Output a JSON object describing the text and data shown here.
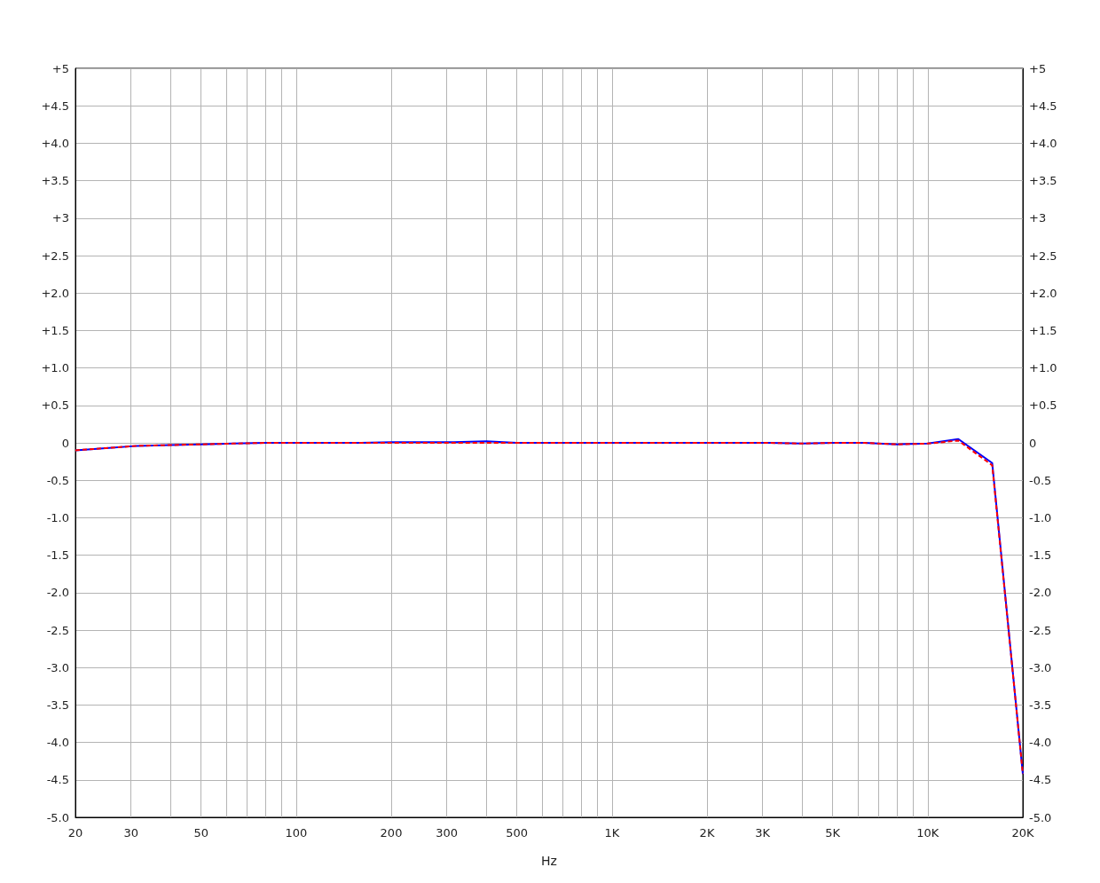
{
  "chart_data": {
    "type": "line",
    "xlabel": "Hz",
    "x": [
      20,
      25,
      31.5,
      40,
      50,
      63,
      80,
      100,
      125,
      160,
      200,
      250,
      315,
      400,
      500,
      630,
      800,
      1000,
      1250,
      1600,
      2000,
      2500,
      3150,
      4000,
      5000,
      6300,
      8000,
      10000,
      12500,
      16000,
      20000
    ],
    "series": [
      {
        "color": "#0000ff",
        "line_style": "solid",
        "values": [
          -0.1,
          -0.07,
          -0.04,
          -0.03,
          -0.02,
          -0.01,
          0,
          0,
          0,
          0,
          0.01,
          0.01,
          0.01,
          0.02,
          0,
          0,
          0,
          0,
          0,
          0,
          0,
          0,
          0,
          -0.01,
          0,
          0,
          -0.02,
          -0.01,
          0.05,
          -0.27,
          -4.42
        ]
      },
      {
        "color": "#ff0000",
        "line_style": "dashed",
        "values": [
          -0.1,
          -0.07,
          -0.04,
          -0.03,
          -0.02,
          -0.01,
          0,
          0,
          0,
          0,
          0,
          0,
          0,
          0,
          0,
          0,
          0,
          0,
          0,
          0,
          0,
          0,
          0,
          -0.01,
          0,
          0,
          -0.02,
          -0.01,
          0.03,
          -0.3,
          -4.42
        ]
      }
    ],
    "log": "x",
    "xlim": [
      20,
      20000
    ],
    "xticks": [
      20,
      30,
      {
        "value": 40,
        "label": null
      },
      50,
      {
        "value": 60,
        "label": null
      },
      {
        "value": 70,
        "label": null
      },
      {
        "value": 80,
        "label": null
      },
      {
        "value": 90,
        "label": null
      },
      100,
      200,
      300,
      {
        "value": 400,
        "label": null
      },
      500,
      {
        "value": 600,
        "label": null
      },
      {
        "value": 700,
        "label": null
      },
      {
        "value": 800,
        "label": null
      },
      {
        "value": 900,
        "label": null
      },
      {
        "value": 1000,
        "label": "1K"
      },
      {
        "value": 2000,
        "label": "2K"
      },
      {
        "value": 3000,
        "label": "3K"
      },
      {
        "value": 4000,
        "label": null
      },
      {
        "value": 5000,
        "label": "5K"
      },
      {
        "value": 6000,
        "label": null
      },
      {
        "value": 7000,
        "label": null
      },
      {
        "value": 8000,
        "label": null
      },
      {
        "value": 9000,
        "label": null
      },
      {
        "value": 10000,
        "label": "10K"
      },
      {
        "value": 20000,
        "label": "20K"
      }
    ],
    "ylim": [
      -5,
      5
    ],
    "yticks": [
      {
        "value": 5,
        "label": "+5"
      },
      {
        "value": 4.5,
        "label": "+4.5"
      },
      {
        "value": 4,
        "label": "+4.0"
      },
      {
        "value": 3.5,
        "label": "+3.5"
      },
      {
        "value": 3,
        "label": "+3"
      },
      {
        "value": 2.5,
        "label": "+2.5"
      },
      {
        "value": 2,
        "label": "+2.0"
      },
      {
        "value": 1.5,
        "label": "+1.5"
      },
      {
        "value": 1,
        "label": "+1.0"
      },
      {
        "value": 0.5,
        "label": "+0.5"
      },
      0,
      -0.5,
      {
        "value": -1,
        "label": "-1.0"
      },
      -1.5,
      {
        "value": -2,
        "label": "-2.0"
      },
      -2.5,
      {
        "value": -3,
        "label": "-3.0"
      },
      -3.5,
      {
        "value": -4,
        "label": "-4.0"
      },
      -4.5,
      {
        "value": -5,
        "label": "-5.0"
      }
    ],
    "y2lim": [
      -5,
      5
    ],
    "y2ticks": [
      {
        "value": 5,
        "label": "+5"
      },
      {
        "value": 4.5,
        "label": "+4.5"
      },
      {
        "value": 4,
        "label": "+4.0"
      },
      {
        "value": 3.5,
        "label": "+3.5"
      },
      {
        "value": 3,
        "label": "+3"
      },
      {
        "value": 2.5,
        "label": "+2.5"
      },
      {
        "value": 2,
        "label": "+2.0"
      },
      {
        "value": 1.5,
        "label": "+1.5"
      },
      {
        "value": 1,
        "label": "+1.0"
      },
      {
        "value": 0.5,
        "label": "+0.5"
      },
      0,
      -0.5,
      {
        "value": -1,
        "label": "-1.0"
      },
      -1.5,
      {
        "value": -2,
        "label": "-2.0"
      },
      -2.5,
      {
        "value": -3,
        "label": "-3.0"
      },
      -3.5,
      {
        "value": -4,
        "label": "-4.0"
      },
      -4.5,
      {
        "value": -5,
        "label": "-5.0"
      }
    ],
    "grid": true,
    "marker": "none"
  }
}
